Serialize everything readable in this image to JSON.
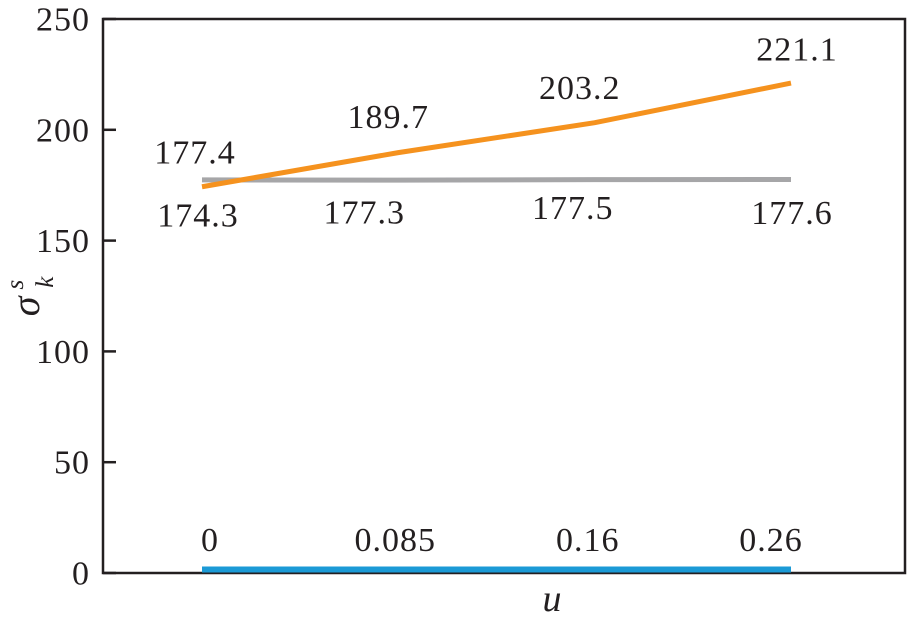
{
  "chart": {
    "xlabel": "u",
    "ylabel_symbol": "σ",
    "ylabel_sup": "s",
    "ylabel_sub": "k"
  },
  "colors": {
    "background": "#FFFFFF",
    "axis": "#231F20",
    "text": "#231F20",
    "orange_series": "#F5921E",
    "gray_series": "#A6A6A8",
    "blue_series": "#1B9AD6"
  },
  "chart_data": {
    "type": "line",
    "title": "",
    "xlabel": "u",
    "ylabel": "sigma_k^s",
    "ylim": [
      0,
      250
    ],
    "yticks": [
      0,
      50,
      100,
      150,
      200,
      250
    ],
    "yticklabels": [
      "0",
      "50",
      "100",
      "150",
      "200",
      "250"
    ],
    "x": [
      0,
      0.085,
      0.16,
      0.26
    ],
    "x_spacing": "categorical-even",
    "grid": false,
    "legend": "none",
    "series": [
      {
        "name": "gray-constant-line",
        "color": "#A6A6A8",
        "stroke_width": 5,
        "values": [
          177.4,
          177.3,
          177.5,
          177.6
        ],
        "point_labels": [
          "177.4",
          "177.3",
          "177.5",
          "177.6"
        ],
        "label_side": [
          "above",
          "below",
          "below",
          "below"
        ]
      },
      {
        "name": "orange-rising-line",
        "color": "#F5921E",
        "stroke_width": 5,
        "values": [
          174.3,
          189.7,
          203.2,
          221.1
        ],
        "point_labels": [
          "174.3",
          "189.7",
          "203.2",
          "221.1"
        ],
        "label_side": [
          "below",
          "above",
          "above",
          "above"
        ]
      },
      {
        "name": "blue-u-line",
        "color": "#1B9AD6",
        "stroke_width": 6,
        "values": [
          0,
          0.085,
          0.16,
          0.26
        ],
        "point_labels": [
          "0",
          "0.085",
          "0.16",
          "0.26"
        ],
        "label_side": [
          "above",
          "above",
          "above",
          "above"
        ]
      }
    ]
  }
}
